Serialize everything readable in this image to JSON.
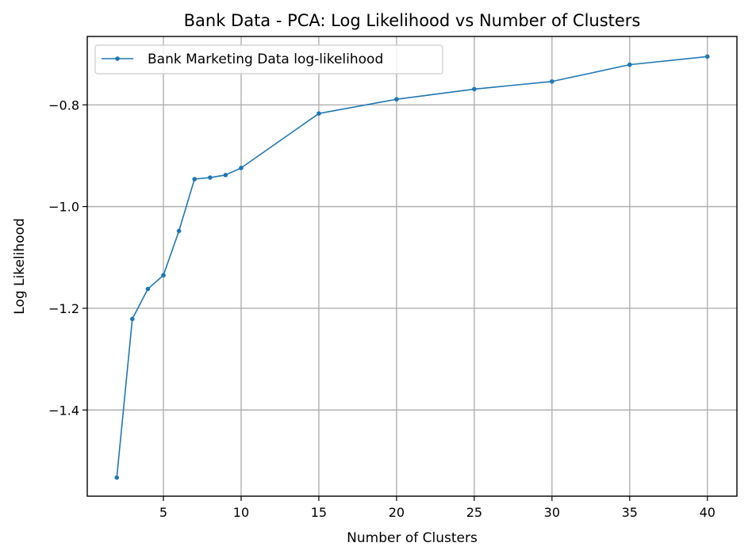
{
  "chart_data": {
    "type": "line",
    "title": "Bank Data - PCA: Log Likelihood vs Number of Clusters",
    "xlabel": "Number of Clusters",
    "ylabel": "Log Likelihood",
    "xlim": [
      0.1,
      41.9
    ],
    "ylim": [
      -1.5695,
      -0.6655
    ],
    "xticks": [
      5,
      10,
      15,
      20,
      25,
      30,
      35,
      40
    ],
    "xtick_labels": [
      "5",
      "10",
      "15",
      "20",
      "25",
      "30",
      "35",
      "40"
    ],
    "yticks": [
      -1.4,
      -1.2,
      -1.0,
      -0.8
    ],
    "ytick_labels": [
      "−1.4",
      "−1.2",
      "−1.0",
      "−0.8"
    ],
    "grid": true,
    "legend_position": "top-left",
    "series": [
      {
        "name": "Bank Marketing Data log-likelihood",
        "color": "#1f77b4",
        "marker": "dot",
        "x": [
          2,
          3,
          4,
          5,
          6,
          7,
          8,
          9,
          10,
          15,
          20,
          25,
          30,
          35,
          40
        ],
        "y": [
          -1.533,
          -1.221,
          -1.162,
          -1.135,
          -1.048,
          -0.946,
          -0.943,
          -0.938,
          -0.924,
          -0.817,
          -0.789,
          -0.769,
          -0.754,
          -0.721,
          -0.705
        ]
      }
    ]
  }
}
